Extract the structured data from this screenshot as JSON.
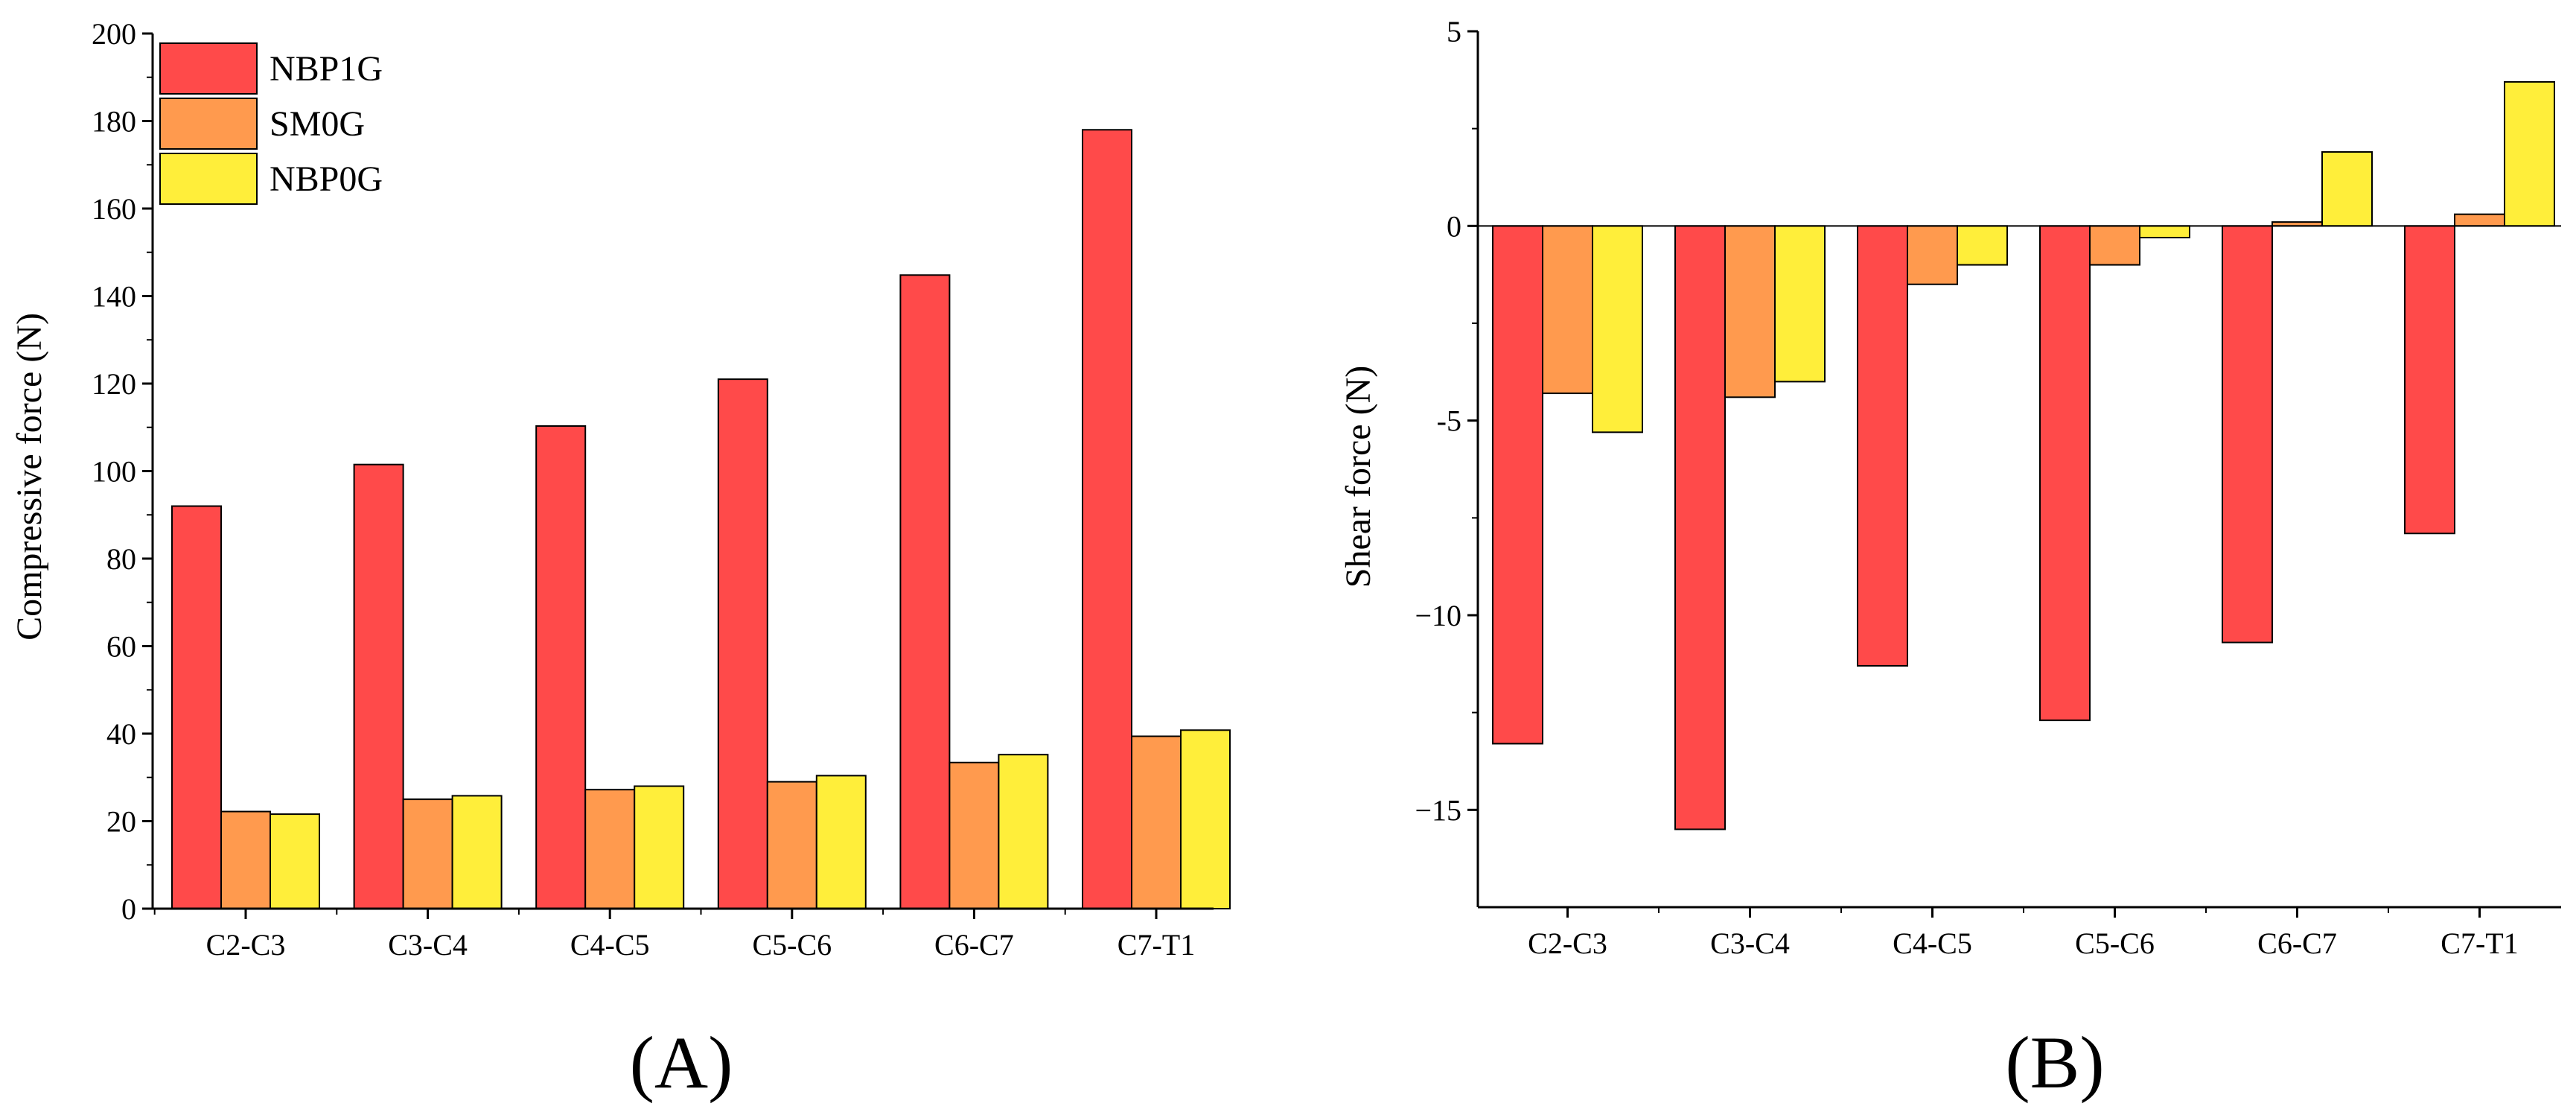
{
  "colors": {
    "NBP1G": "#ff4a4a",
    "SM0G": "#ff9a4e",
    "NBP0G": "#ffee3a",
    "bar_stroke": "#000000",
    "axis": "#000000"
  },
  "chart_data": [
    {
      "type": "bar",
      "panel": "(A)",
      "categories": [
        "C2-C3",
        "C3-C4",
        "C4-C5",
        "C5-C6",
        "C6-C7",
        "C7-T1"
      ],
      "series": [
        {
          "name": "NBP1G",
          "values": [
            92,
            101.5,
            110.3,
            121,
            144.8,
            178
          ]
        },
        {
          "name": "SM0G",
          "values": [
            22.2,
            25,
            27.2,
            29,
            33.4,
            39.4
          ]
        },
        {
          "name": "NBP0G",
          "values": [
            21.6,
            25.8,
            28,
            30.4,
            35.2,
            40.8
          ]
        }
      ],
      "title": "",
      "xlabel": "",
      "ylabel": "Compressive force (N)",
      "ylim": [
        0,
        200
      ],
      "yticks": [
        "0",
        "20",
        "40",
        "60",
        "80",
        "100",
        "120",
        "140",
        "160",
        "180",
        "200"
      ],
      "legend": "top-left"
    },
    {
      "type": "bar",
      "panel": "(B)",
      "categories": [
        "C2-C3",
        "C3-C4",
        "C4-C5",
        "C5-C6",
        "C6-C7",
        "C7-T1"
      ],
      "series": [
        {
          "name": "NBP1G",
          "values": [
            -13.3,
            -15.5,
            -11.3,
            -12.7,
            -10.7,
            -7.9
          ]
        },
        {
          "name": "SM0G",
          "values": [
            -4.3,
            -4.4,
            -1.5,
            -1.0,
            0.1,
            0.3
          ]
        },
        {
          "name": "NBP0G",
          "values": [
            -5.3,
            -4.0,
            -1.0,
            -0.3,
            1.9,
            3.7
          ]
        }
      ],
      "title": "",
      "xlabel": "",
      "ylabel": "Shear force (N)",
      "ylim": [
        -17.5,
        5
      ],
      "yticks": [
        "−15",
        "−10",
        "-5",
        "0",
        "5"
      ],
      "ytick_values": [
        -15,
        -10,
        -5,
        0,
        5
      ],
      "legend": "none"
    }
  ]
}
